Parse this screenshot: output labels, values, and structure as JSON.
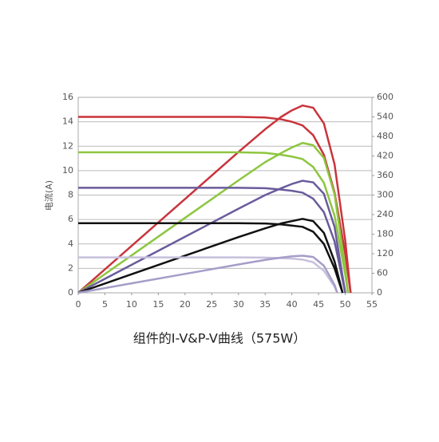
{
  "chart_data": {
    "type": "line",
    "caption": "组件的I-V&P-V曲线（575W）",
    "y_label": "电流(A)",
    "xlim": [
      0,
      55
    ],
    "xticks": [
      0,
      5,
      10,
      15,
      20,
      25,
      30,
      35,
      40,
      45,
      50,
      55
    ],
    "ylim": [
      0,
      16
    ],
    "yticks": [
      0,
      2,
      4,
      6,
      8,
      10,
      12,
      14,
      16
    ],
    "y2lim": [
      0,
      600
    ],
    "y2ticks": [
      0,
      60,
      120,
      180,
      240,
      300,
      360,
      420,
      480,
      540,
      600
    ],
    "grid": true,
    "series": [
      {
        "color": "#c9343c",
        "x": [
          0,
          10,
          20,
          30,
          35,
          38,
          40,
          42,
          44,
          46,
          48,
          50,
          51
        ],
        "values": [
          14.4,
          14.4,
          14.4,
          14.4,
          14.35,
          14.2,
          14.0,
          13.7,
          12.9,
          11.3,
          8.2,
          3.2,
          0
        ]
      },
      {
        "color": "#c9343c",
        "axis": "y2",
        "x": [
          0,
          10,
          20,
          30,
          35,
          38,
          40,
          42,
          44,
          46,
          48,
          50,
          51
        ],
        "values": [
          0,
          144,
          288,
          432,
          502,
          540,
          560,
          575,
          568,
          520,
          394,
          160,
          0
        ]
      },
      {
        "color": "#8dc63f",
        "x": [
          0,
          10,
          20,
          30,
          35,
          38,
          40,
          42,
          44,
          46,
          48,
          50,
          50.5
        ],
        "values": [
          11.5,
          11.5,
          11.5,
          11.5,
          11.45,
          11.3,
          11.15,
          10.95,
          10.3,
          9.0,
          6.3,
          1.5,
          0
        ]
      },
      {
        "color": "#8dc63f",
        "axis": "y2",
        "x": [
          0,
          10,
          20,
          30,
          35,
          38,
          40,
          42,
          44,
          46,
          48,
          50,
          50.5
        ],
        "values": [
          0,
          115,
          230,
          345,
          401,
          429,
          446,
          460,
          453,
          414,
          302,
          75,
          0
        ]
      },
      {
        "color": "#6a5b9c",
        "x": [
          0,
          10,
          20,
          30,
          35,
          38,
          40,
          42,
          44,
          46,
          48,
          50
        ],
        "values": [
          8.6,
          8.6,
          8.6,
          8.6,
          8.56,
          8.45,
          8.35,
          8.2,
          7.7,
          6.6,
          4.2,
          0
        ]
      },
      {
        "color": "#6a5b9c",
        "axis": "y2",
        "x": [
          0,
          10,
          20,
          30,
          35,
          38,
          40,
          42,
          44,
          46,
          48,
          50
        ],
        "values": [
          0,
          86,
          172,
          258,
          300,
          321,
          334,
          344,
          339,
          304,
          202,
          0
        ]
      },
      {
        "color": "#111111",
        "x": [
          0,
          10,
          20,
          30,
          35,
          38,
          40,
          42,
          44,
          46,
          48,
          49.5
        ],
        "values": [
          5.7,
          5.7,
          5.7,
          5.7,
          5.67,
          5.6,
          5.5,
          5.4,
          5.0,
          4.0,
          2.0,
          0
        ]
      },
      {
        "color": "#111111",
        "axis": "y2",
        "x": [
          0,
          10,
          20,
          30,
          35,
          38,
          40,
          42,
          44,
          46,
          48,
          49.5
        ],
        "values": [
          0,
          57,
          114,
          171,
          198,
          213,
          220,
          227,
          220,
          184,
          96,
          0
        ]
      },
      {
        "color": "#c6c0dc",
        "x": [
          0,
          10,
          20,
          30,
          35,
          38,
          40,
          42,
          44,
          46,
          48,
          48.5
        ],
        "values": [
          2.9,
          2.9,
          2.9,
          2.9,
          2.88,
          2.84,
          2.8,
          2.72,
          2.5,
          1.8,
          0.5,
          0
        ]
      },
      {
        "color": "#a69dc8",
        "axis": "y2",
        "x": [
          0,
          10,
          20,
          30,
          35,
          38,
          40,
          42,
          44,
          46,
          48,
          48.5
        ],
        "values": [
          0,
          29,
          58,
          87,
          101,
          108,
          112,
          114,
          110,
          83,
          24,
          0
        ]
      }
    ]
  }
}
